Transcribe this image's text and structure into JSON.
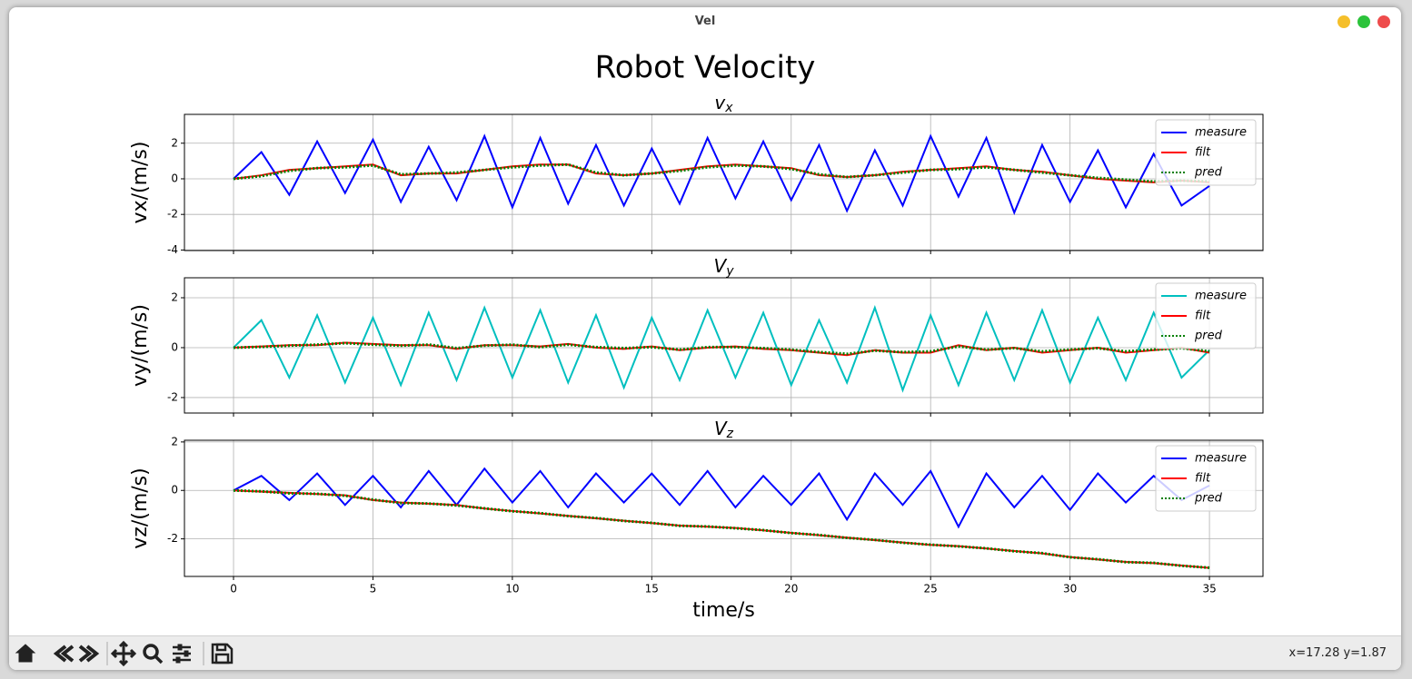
{
  "window_title": "Vel",
  "status": "x=17.28 y=1.87",
  "suptitle": "Robot Velocity",
  "chart_data": [
    {
      "type": "line",
      "title": {
        "base": "v",
        "subscript": "x"
      },
      "ylabel": "vx/(m/s)",
      "x": [
        0,
        1,
        2,
        3,
        4,
        5,
        6,
        7,
        8,
        9,
        10,
        11,
        12,
        13,
        14,
        15,
        16,
        17,
        18,
        19,
        20,
        21,
        22,
        23,
        24,
        25,
        26,
        27,
        28,
        29,
        30,
        31,
        32,
        33,
        34,
        35
      ],
      "xlim": [
        -1.76,
        36.92
      ],
      "xticks": [
        0,
        5,
        10,
        15,
        20,
        25,
        30,
        35
      ],
      "xtick_labels": false,
      "ylim": [
        -4.03,
        3.62
      ],
      "yticks": [
        -4,
        -2,
        0,
        2
      ],
      "grid": true,
      "legend": "upper right",
      "series": [
        {
          "name": "measure",
          "color": "#0000ff",
          "style": "solid",
          "values": [
            0,
            1.5,
            -0.9,
            2.1,
            -0.8,
            2.2,
            -1.3,
            1.8,
            -1.2,
            2.4,
            -1.6,
            2.3,
            -1.4,
            1.9,
            -1.5,
            1.7,
            -1.4,
            2.3,
            -1.1,
            2.1,
            -1.2,
            1.9,
            -1.8,
            1.6,
            -1.5,
            2.4,
            -1.0,
            2.3,
            -1.9,
            1.9,
            -1.3,
            1.6,
            -1.6,
            1.4,
            -1.5,
            -0.4
          ]
        },
        {
          "name": "filt",
          "color": "#ff0000",
          "style": "solid",
          "values": [
            0,
            0.2,
            0.5,
            0.6,
            0.7,
            0.8,
            0.2,
            0.3,
            0.3,
            0.5,
            0.7,
            0.8,
            0.8,
            0.3,
            0.2,
            0.3,
            0.5,
            0.7,
            0.8,
            0.7,
            0.6,
            0.2,
            0.1,
            0.2,
            0.4,
            0.5,
            0.6,
            0.7,
            0.5,
            0.4,
            0.2,
            0.0,
            -0.1,
            -0.2,
            -0.1,
            -0.2
          ]
        },
        {
          "name": "pred",
          "color": "#008000",
          "style": "dotted",
          "values": [
            0,
            0.15,
            0.45,
            0.6,
            0.65,
            0.75,
            0.25,
            0.3,
            0.35,
            0.5,
            0.65,
            0.75,
            0.8,
            0.35,
            0.2,
            0.3,
            0.45,
            0.65,
            0.75,
            0.7,
            0.55,
            0.25,
            0.1,
            0.2,
            0.35,
            0.5,
            0.55,
            0.65,
            0.5,
            0.35,
            0.2,
            0.05,
            -0.05,
            -0.15,
            -0.1,
            -0.15
          ]
        }
      ]
    },
    {
      "type": "line",
      "title": {
        "base": "V",
        "subscript": "y"
      },
      "ylabel": "vy/(m/s)",
      "x": [
        0,
        1,
        2,
        3,
        4,
        5,
        6,
        7,
        8,
        9,
        10,
        11,
        12,
        13,
        14,
        15,
        16,
        17,
        18,
        19,
        20,
        21,
        22,
        23,
        24,
        25,
        26,
        27,
        28,
        29,
        30,
        31,
        32,
        33,
        34,
        35
      ],
      "xlim": [
        -1.76,
        36.92
      ],
      "xticks": [
        0,
        5,
        10,
        15,
        20,
        25,
        30,
        35
      ],
      "xtick_labels": false,
      "ylim": [
        -2.62,
        2.8
      ],
      "yticks": [
        -2,
        0,
        2
      ],
      "grid": true,
      "legend": "upper right",
      "series": [
        {
          "name": "measure",
          "color": "#00bfbf",
          "style": "solid",
          "values": [
            0,
            1.1,
            -1.2,
            1.3,
            -1.4,
            1.2,
            -1.5,
            1.4,
            -1.3,
            1.6,
            -1.2,
            1.5,
            -1.4,
            1.3,
            -1.6,
            1.2,
            -1.3,
            1.5,
            -1.2,
            1.4,
            -1.5,
            1.1,
            -1.4,
            1.6,
            -1.7,
            1.3,
            -1.5,
            1.4,
            -1.3,
            1.5,
            -1.4,
            1.2,
            -1.3,
            1.4,
            -1.2,
            -0.1
          ]
        },
        {
          "name": "filt",
          "color": "#ff0000",
          "style": "solid",
          "values": [
            0,
            0.05,
            0.1,
            0.1,
            0.2,
            0.15,
            0.1,
            0.1,
            -0.05,
            0.1,
            0.1,
            0.05,
            0.15,
            0.0,
            -0.05,
            0.05,
            -0.1,
            0.0,
            0.05,
            -0.05,
            -0.1,
            -0.2,
            -0.3,
            -0.1,
            -0.2,
            -0.2,
            0.1,
            -0.1,
            0.0,
            -0.2,
            -0.1,
            0.0,
            -0.2,
            -0.1,
            0.0,
            -0.2
          ]
        },
        {
          "name": "pred",
          "color": "#008000",
          "style": "dotted",
          "values": [
            0,
            0.03,
            0.08,
            0.12,
            0.18,
            0.12,
            0.08,
            0.12,
            -0.02,
            0.08,
            0.12,
            0.02,
            0.12,
            0.02,
            -0.02,
            0.02,
            -0.08,
            0.02,
            0.02,
            -0.02,
            -0.08,
            -0.18,
            -0.25,
            -0.12,
            -0.18,
            -0.15,
            0.05,
            -0.08,
            -0.02,
            -0.15,
            -0.08,
            -0.02,
            -0.15,
            -0.08,
            -0.02,
            -0.15
          ]
        }
      ]
    },
    {
      "type": "line",
      "title": {
        "base": "V",
        "subscript": "z"
      },
      "ylabel": "vz/(m/s)",
      "xlabel": "time/s",
      "x": [
        0,
        1,
        2,
        3,
        4,
        5,
        6,
        7,
        8,
        9,
        10,
        11,
        12,
        13,
        14,
        15,
        16,
        17,
        18,
        19,
        20,
        21,
        22,
        23,
        24,
        25,
        26,
        27,
        28,
        29,
        30,
        31,
        32,
        33,
        34,
        35
      ],
      "xlim": [
        -1.76,
        36.92
      ],
      "xticks": [
        0,
        5,
        10,
        15,
        20,
        25,
        30,
        35
      ],
      "xtick_labels": true,
      "ylim": [
        -3.55,
        2.07
      ],
      "yticks": [
        -2,
        0,
        2
      ],
      "grid": true,
      "legend": "upper right",
      "series": [
        {
          "name": "measure",
          "color": "#0000ff",
          "style": "solid",
          "values": [
            0,
            0.6,
            -0.4,
            0.7,
            -0.6,
            0.6,
            -0.7,
            0.8,
            -0.6,
            0.9,
            -0.5,
            0.8,
            -0.7,
            0.7,
            -0.5,
            0.7,
            -0.6,
            0.8,
            -0.7,
            0.6,
            -0.6,
            0.7,
            -1.2,
            0.7,
            -0.6,
            0.8,
            -1.5,
            0.7,
            -0.7,
            0.6,
            -0.8,
            0.7,
            -0.5,
            0.6,
            -0.4,
            0.2
          ]
        },
        {
          "name": "filt",
          "color": "#ff0000",
          "style": "solid",
          "values": [
            0,
            -0.05,
            -0.1,
            -0.15,
            -0.2,
            -0.4,
            -0.5,
            -0.55,
            -0.6,
            -0.75,
            -0.85,
            -0.95,
            -1.05,
            -1.15,
            -1.25,
            -1.35,
            -1.45,
            -1.5,
            -1.55,
            -1.65,
            -1.75,
            -1.85,
            -1.95,
            -2.05,
            -2.15,
            -2.25,
            -2.3,
            -2.4,
            -2.5,
            -2.6,
            -2.75,
            -2.85,
            -2.95,
            -3.0,
            -3.1,
            -3.2
          ]
        },
        {
          "name": "pred",
          "color": "#008000",
          "style": "dotted",
          "values": [
            0,
            -0.04,
            -0.12,
            -0.14,
            -0.22,
            -0.38,
            -0.52,
            -0.54,
            -0.62,
            -0.74,
            -0.86,
            -0.94,
            -1.06,
            -1.14,
            -1.26,
            -1.34,
            -1.46,
            -1.49,
            -1.56,
            -1.64,
            -1.76,
            -1.84,
            -1.96,
            -2.04,
            -2.16,
            -2.24,
            -2.31,
            -2.39,
            -2.51,
            -2.59,
            -2.76,
            -2.84,
            -2.96,
            -2.99,
            -3.11,
            -3.19
          ]
        }
      ]
    }
  ]
}
